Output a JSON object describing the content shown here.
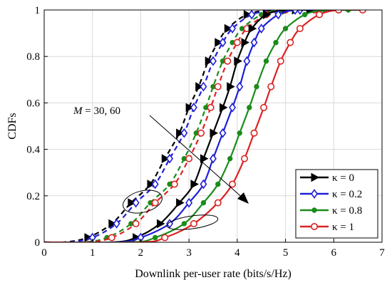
{
  "chart_data": {
    "type": "line",
    "title": "",
    "xlabel": "Downlink per-user rate (bits/s/Hz)",
    "ylabel": "CDFs",
    "xlim": [
      0,
      7
    ],
    "ylim": [
      0,
      1
    ],
    "xticks": [
      "0",
      "1",
      "2",
      "3",
      "4",
      "5",
      "6",
      "7"
    ],
    "yticks": [
      "0",
      "0.2",
      "0.4",
      "0.6",
      "0.8",
      "1"
    ],
    "grid": true,
    "legend_position": "bottom-right",
    "legend": [
      {
        "label": "κ = 0",
        "symbol": "kappa",
        "value": "0",
        "color": "#000000",
        "marker": "triangle"
      },
      {
        "label": "κ = 0.2",
        "symbol": "kappa",
        "value": "0.2",
        "color": "#1f1fd6",
        "marker": "diamond"
      },
      {
        "label": "κ = 0.8",
        "symbol": "kappa",
        "value": "0.8",
        "color": "#1a8c1a",
        "marker": "dot"
      },
      {
        "label": "κ = 1",
        "symbol": "kappa",
        "value": "1",
        "color": "#dd2222",
        "marker": "circle"
      }
    ],
    "annotation": {
      "var": "M",
      "text": " = 30, 60"
    },
    "series": [
      {
        "kappa": "0",
        "M": "30",
        "dashed": true,
        "color": "#000000",
        "marker": "triangle",
        "x": [
          0.9,
          1.4,
          1.8,
          2.2,
          2.5,
          2.8,
          3.0,
          3.2,
          3.4,
          3.6,
          3.8,
          4.2,
          4.7,
          5.2
        ],
        "y": [
          0.02,
          0.08,
          0.17,
          0.25,
          0.36,
          0.47,
          0.58,
          0.67,
          0.78,
          0.86,
          0.92,
          0.98,
          1.0,
          1.0
        ]
      },
      {
        "kappa": "0.2",
        "M": "30",
        "dashed": true,
        "color": "#1f1fd6",
        "marker": "diamond",
        "x": [
          1.0,
          1.5,
          1.9,
          2.3,
          2.6,
          2.9,
          3.1,
          3.3,
          3.5,
          3.7,
          3.9,
          4.3,
          4.8,
          5.3
        ],
        "y": [
          0.02,
          0.08,
          0.17,
          0.25,
          0.36,
          0.47,
          0.58,
          0.67,
          0.78,
          0.86,
          0.92,
          0.98,
          1.0,
          1.0
        ]
      },
      {
        "kappa": "0.8",
        "M": "30",
        "dashed": true,
        "color": "#1a8c1a",
        "marker": "dot",
        "x": [
          1.3,
          1.8,
          2.2,
          2.6,
          2.9,
          3.15,
          3.35,
          3.5,
          3.7,
          3.9,
          4.1,
          4.5,
          4.9,
          5.5
        ],
        "y": [
          0.02,
          0.08,
          0.17,
          0.25,
          0.36,
          0.47,
          0.58,
          0.67,
          0.78,
          0.86,
          0.92,
          0.98,
          1.0,
          1.0
        ]
      },
      {
        "kappa": "1",
        "M": "30",
        "dashed": true,
        "color": "#dd2222",
        "marker": "circle",
        "x": [
          1.4,
          1.9,
          2.3,
          2.7,
          3.0,
          3.25,
          3.45,
          3.6,
          3.8,
          4.0,
          4.2,
          4.6,
          5.0,
          5.6
        ],
        "y": [
          0.02,
          0.08,
          0.17,
          0.25,
          0.36,
          0.47,
          0.58,
          0.67,
          0.78,
          0.86,
          0.92,
          0.98,
          1.0,
          1.0
        ]
      },
      {
        "kappa": "0",
        "M": "60",
        "dashed": false,
        "color": "#000000",
        "marker": "triangle",
        "x": [
          1.9,
          2.4,
          2.8,
          3.1,
          3.3,
          3.5,
          3.7,
          3.85,
          4.0,
          4.15,
          4.3,
          4.6,
          5.0,
          5.5
        ],
        "y": [
          0.02,
          0.08,
          0.17,
          0.25,
          0.36,
          0.47,
          0.58,
          0.67,
          0.78,
          0.86,
          0.92,
          0.98,
          1.0,
          1.0
        ]
      },
      {
        "kappa": "0.2",
        "M": "60",
        "dashed": false,
        "color": "#1f1fd6",
        "marker": "diamond",
        "x": [
          2.0,
          2.6,
          3.0,
          3.3,
          3.5,
          3.7,
          3.9,
          4.05,
          4.2,
          4.35,
          4.5,
          4.85,
          5.2,
          5.7
        ],
        "y": [
          0.02,
          0.08,
          0.17,
          0.25,
          0.36,
          0.47,
          0.58,
          0.67,
          0.78,
          0.86,
          0.92,
          0.98,
          1.0,
          1.0
        ]
      },
      {
        "kappa": "0.8",
        "M": "60",
        "dashed": false,
        "color": "#1a8c1a",
        "marker": "dot",
        "x": [
          2.3,
          2.9,
          3.3,
          3.6,
          3.85,
          4.05,
          4.25,
          4.4,
          4.6,
          4.8,
          5.0,
          5.4,
          5.8,
          6.3
        ],
        "y": [
          0.02,
          0.08,
          0.17,
          0.25,
          0.36,
          0.47,
          0.58,
          0.67,
          0.78,
          0.86,
          0.92,
          0.98,
          1.0,
          1.0
        ]
      },
      {
        "kappa": "1",
        "M": "60",
        "dashed": false,
        "color": "#dd2222",
        "marker": "circle",
        "x": [
          2.5,
          3.1,
          3.6,
          3.9,
          4.15,
          4.35,
          4.55,
          4.7,
          4.9,
          5.1,
          5.3,
          5.7,
          6.1,
          6.6
        ],
        "y": [
          0.02,
          0.08,
          0.17,
          0.25,
          0.36,
          0.47,
          0.58,
          0.67,
          0.78,
          0.86,
          0.92,
          0.98,
          1.0,
          1.0
        ]
      }
    ]
  }
}
